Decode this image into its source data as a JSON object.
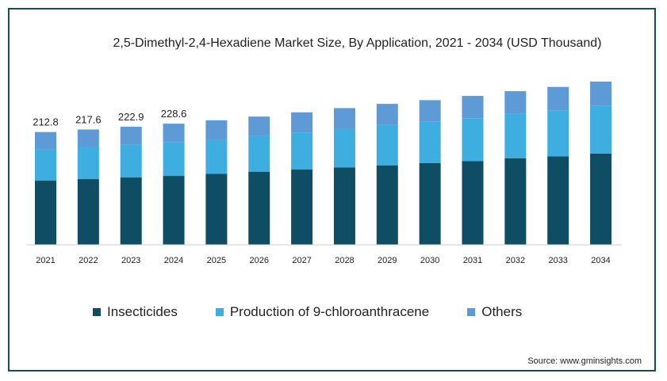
{
  "chart_data": {
    "type": "bar",
    "stacked": true,
    "title": "2,5-Dimethyl-2,4-Hexadiene Market Size, By Application, 2021 - 2034 (USD Thousand)",
    "categories": [
      "2021",
      "2022",
      "2023",
      "2024",
      "2025",
      "2026",
      "2027",
      "2028",
      "2029",
      "2030",
      "2031",
      "2032",
      "2033",
      "2034"
    ],
    "series": [
      {
        "name": "Insecticides",
        "color": "#0e4d63",
        "values": [
          121,
          124,
          127,
          130,
          134,
          138,
          142,
          146,
          150,
          154,
          158,
          163,
          167,
          172
        ]
      },
      {
        "name": "Production of 9-chloroanthracene",
        "color": "#3eaee0",
        "values": [
          59,
          60,
          62,
          64,
          64,
          67,
          70,
          73,
          76,
          78,
          81,
          84,
          87,
          90
        ]
      },
      {
        "name": "Others",
        "color": "#5d9ad6",
        "values": [
          32.8,
          33.6,
          33.9,
          34.6,
          37,
          37,
          38,
          39,
          40,
          41,
          42,
          43,
          44,
          46
        ]
      }
    ],
    "data_labels": [
      "212.8",
      "217.6",
      "222.9",
      "228.6"
    ],
    "ylim": [
      0,
      320
    ],
    "grid": false,
    "legend": "bottom"
  },
  "source": "Source: www.gminsights.com"
}
